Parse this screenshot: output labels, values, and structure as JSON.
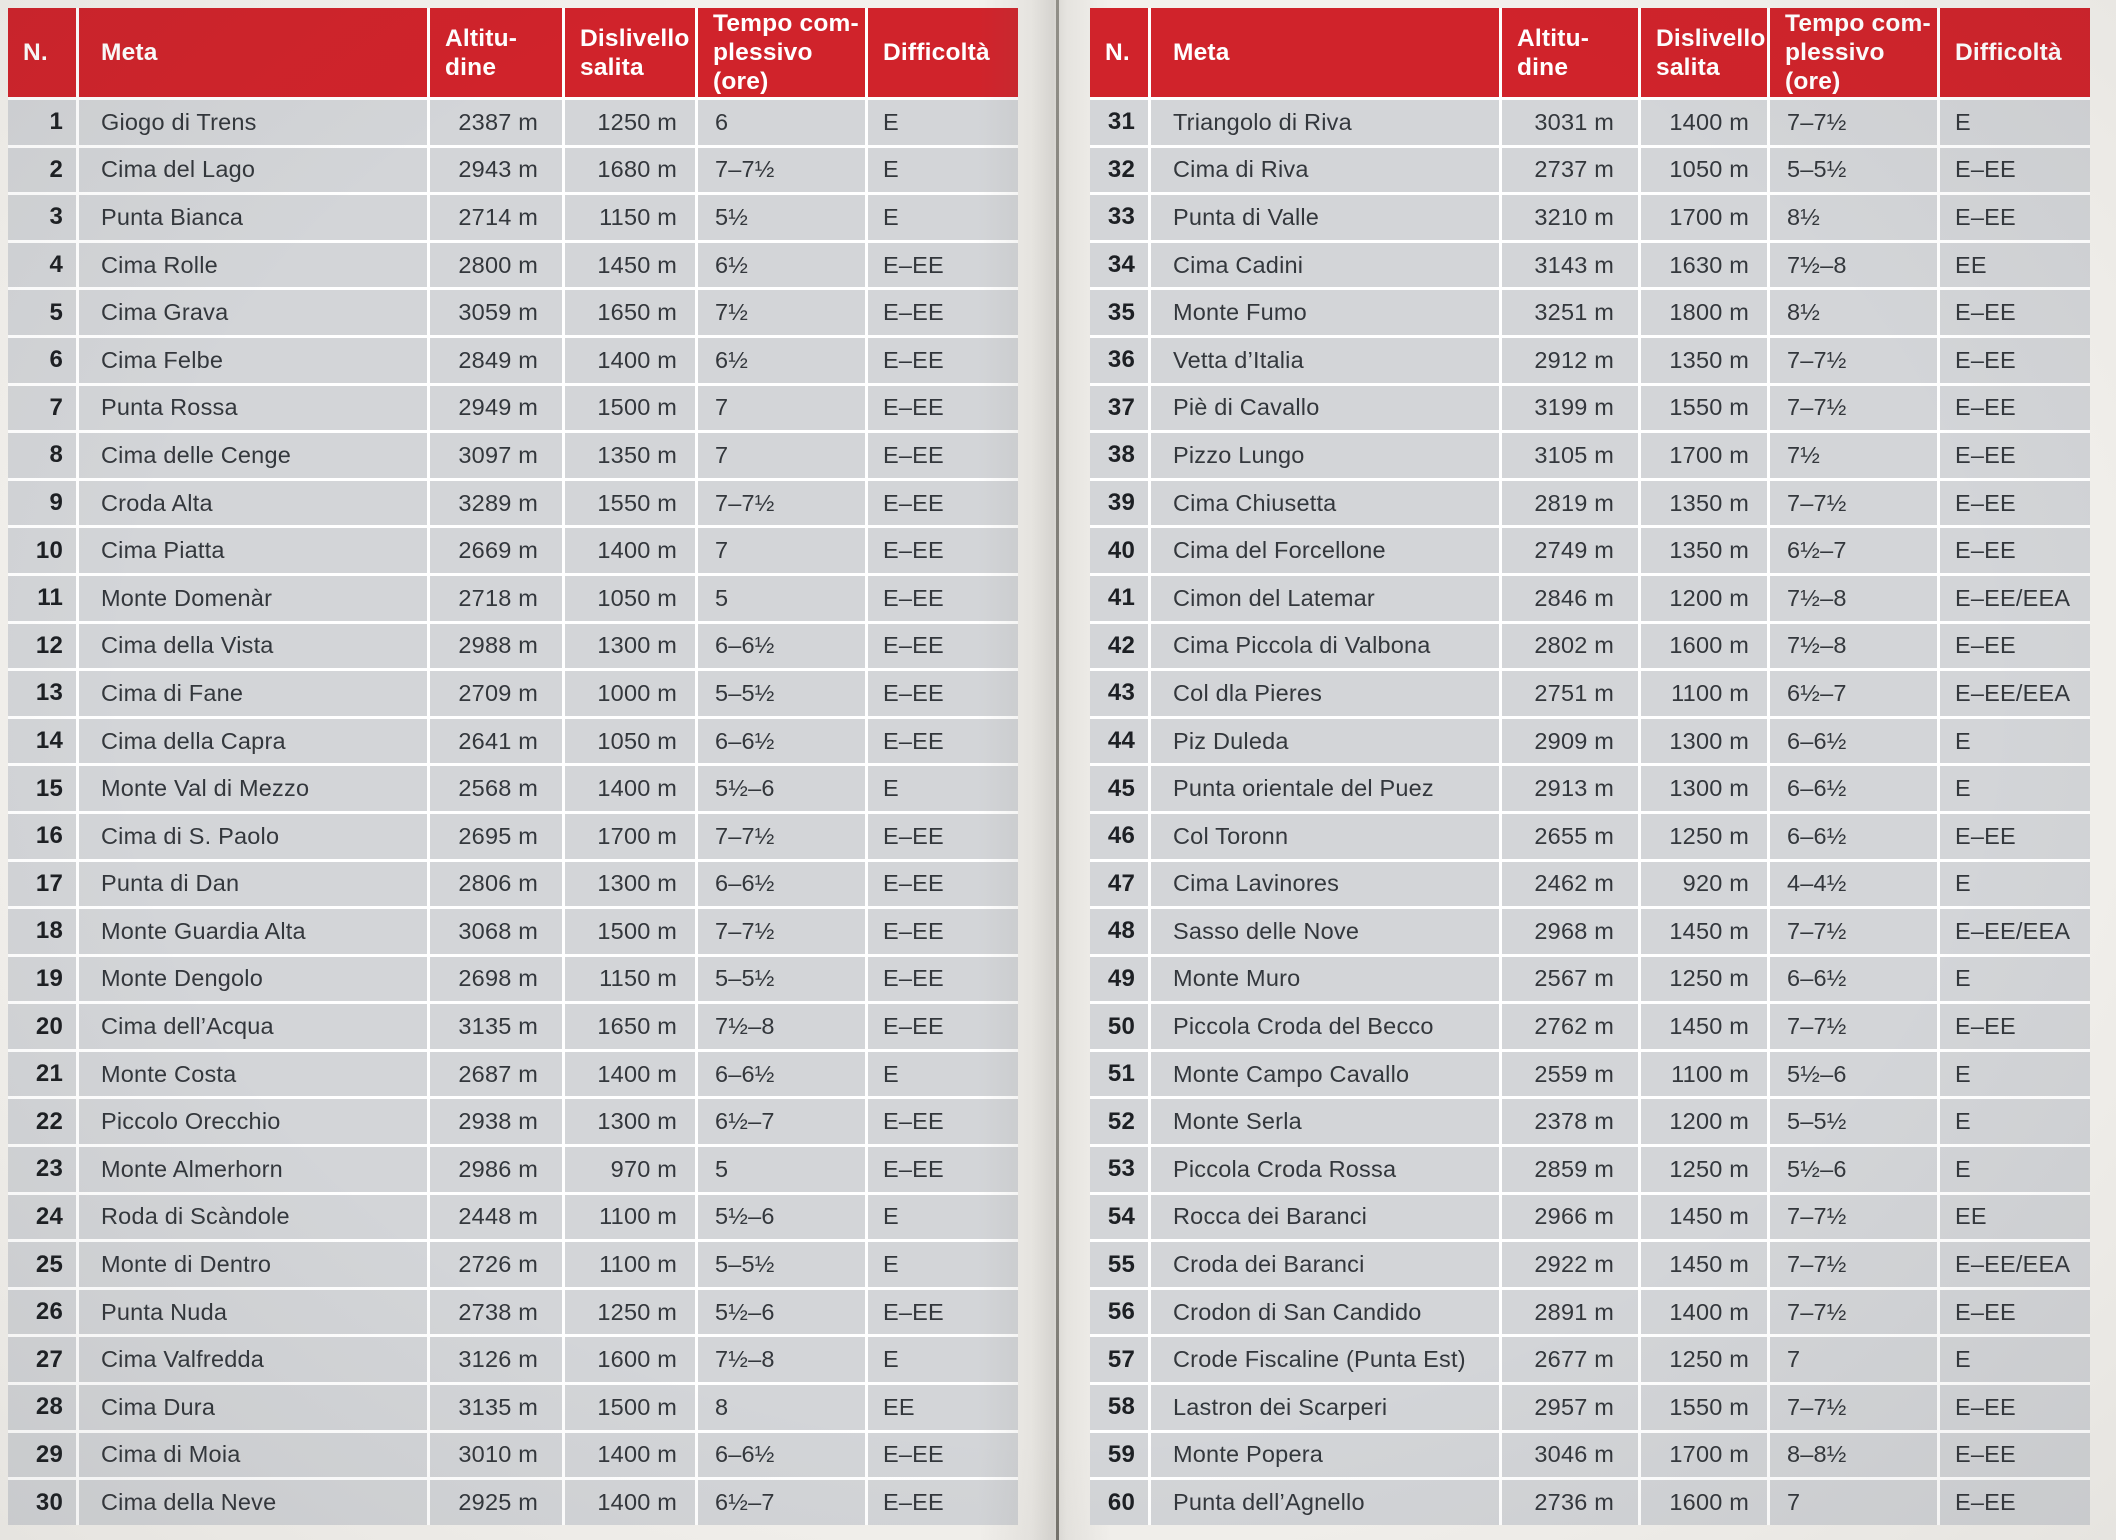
{
  "colors": {
    "header_red": "#d0232b",
    "row_gray": "#d3d5d8",
    "page_bg": "#f3f1ed",
    "text_dark": "#33373c",
    "separator_white": "#ffffff"
  },
  "columns": [
    {
      "key": "n",
      "label": "N."
    },
    {
      "key": "meta",
      "label": "Meta"
    },
    {
      "key": "altitudine",
      "label": "Altitu-\ndine"
    },
    {
      "key": "dislivello",
      "label": "Dislivello\nsalita"
    },
    {
      "key": "tempo",
      "label": "Tempo com-\nplessivo (ore)"
    },
    {
      "key": "difficolta",
      "label": "Difficoltà"
    }
  ],
  "tables": [
    {
      "side": "left",
      "rows": [
        [
          "1",
          "Giogo di Trens",
          "2387 m",
          "1250 m",
          "6",
          "E"
        ],
        [
          "2",
          "Cima del Lago",
          "2943 m",
          "1680 m",
          "7–7½",
          "E"
        ],
        [
          "3",
          "Punta Bianca",
          "2714 m",
          "1150 m",
          "5½",
          "E"
        ],
        [
          "4",
          "Cima Rolle",
          "2800 m",
          "1450 m",
          "6½",
          "E–EE"
        ],
        [
          "5",
          "Cima Grava",
          "3059 m",
          "1650 m",
          "7½",
          "E–EE"
        ],
        [
          "6",
          "Cima Felbe",
          "2849 m",
          "1400 m",
          "6½",
          "E–EE"
        ],
        [
          "7",
          "Punta Rossa",
          "2949 m",
          "1500 m",
          "7",
          "E–EE"
        ],
        [
          "8",
          "Cima delle Cenge",
          "3097 m",
          "1350 m",
          "7",
          "E–EE"
        ],
        [
          "9",
          "Croda Alta",
          "3289 m",
          "1550 m",
          "7–7½",
          "E–EE"
        ],
        [
          "10",
          "Cima Piatta",
          "2669 m",
          "1400 m",
          "7",
          "E–EE"
        ],
        [
          "11",
          "Monte Domenàr",
          "2718 m",
          "1050 m",
          "5",
          "E–EE"
        ],
        [
          "12",
          "Cima della Vista",
          "2988 m",
          "1300 m",
          "6–6½",
          "E–EE"
        ],
        [
          "13",
          "Cima di Fane",
          "2709 m",
          "1000 m",
          "5–5½",
          "E–EE"
        ],
        [
          "14",
          "Cima della Capra",
          "2641 m",
          "1050 m",
          "6–6½",
          "E–EE"
        ],
        [
          "15",
          "Monte Val di Mezzo",
          "2568 m",
          "1400 m",
          "5½–6",
          "E"
        ],
        [
          "16",
          "Cima di S. Paolo",
          "2695 m",
          "1700 m",
          "7–7½",
          "E–EE"
        ],
        [
          "17",
          "Punta di Dan",
          "2806 m",
          "1300 m",
          "6–6½",
          "E–EE"
        ],
        [
          "18",
          "Monte Guardia Alta",
          "3068 m",
          "1500 m",
          "7–7½",
          "E–EE"
        ],
        [
          "19",
          "Monte Dengolo",
          "2698 m",
          "1150 m",
          "5–5½",
          "E–EE"
        ],
        [
          "20",
          "Cima dell’Acqua",
          "3135 m",
          "1650 m",
          "7½–8",
          "E–EE"
        ],
        [
          "21",
          "Monte Costa",
          "2687 m",
          "1400 m",
          "6–6½",
          "E"
        ],
        [
          "22",
          "Piccolo Orecchio",
          "2938 m",
          "1300 m",
          "6½–7",
          "E–EE"
        ],
        [
          "23",
          "Monte Almerhorn",
          "2986 m",
          "970 m",
          "5",
          "E–EE"
        ],
        [
          "24",
          "Roda di Scàndole",
          "2448 m",
          "1100 m",
          "5½–6",
          "E"
        ],
        [
          "25",
          "Monte di Dentro",
          "2726 m",
          "1100 m",
          "5–5½",
          "E"
        ],
        [
          "26",
          "Punta Nuda",
          "2738 m",
          "1250 m",
          "5½–6",
          "E–EE"
        ],
        [
          "27",
          "Cima Valfredda",
          "3126 m",
          "1600 m",
          "7½–8",
          "E"
        ],
        [
          "28",
          "Cima Dura",
          "3135 m",
          "1500 m",
          "8",
          "EE"
        ],
        [
          "29",
          "Cima di Moia",
          "3010 m",
          "1400 m",
          "6–6½",
          "E–EE"
        ],
        [
          "30",
          "Cima della Neve",
          "2925 m",
          "1400 m",
          "6½–7",
          "E–EE"
        ]
      ]
    },
    {
      "side": "right",
      "rows": [
        [
          "31",
          "Triangolo di Riva",
          "3031 m",
          "1400 m",
          "7–7½",
          "E"
        ],
        [
          "32",
          "Cima di Riva",
          "2737 m",
          "1050 m",
          "5–5½",
          "E–EE"
        ],
        [
          "33",
          "Punta di Valle",
          "3210 m",
          "1700 m",
          "8½",
          "E–EE"
        ],
        [
          "34",
          "Cima Cadini",
          "3143 m",
          "1630 m",
          "7½–8",
          "EE"
        ],
        [
          "35",
          "Monte Fumo",
          "3251 m",
          "1800 m",
          "8½",
          "E–EE"
        ],
        [
          "36",
          "Vetta d’Italia",
          "2912 m",
          "1350 m",
          "7–7½",
          "E–EE"
        ],
        [
          "37",
          "Piè di Cavallo",
          "3199 m",
          "1550 m",
          "7–7½",
          "E–EE"
        ],
        [
          "38",
          "Pizzo Lungo",
          "3105 m",
          "1700 m",
          "7½",
          "E–EE"
        ],
        [
          "39",
          "Cima Chiusetta",
          "2819 m",
          "1350 m",
          "7–7½",
          "E–EE"
        ],
        [
          "40",
          "Cima del Forcellone",
          "2749 m",
          "1350 m",
          "6½–7",
          "E–EE"
        ],
        [
          "41",
          "Cimon del Latemar",
          "2846 m",
          "1200 m",
          "7½–8",
          "E–EE/EEA"
        ],
        [
          "42",
          "Cima Piccola di Valbona",
          "2802 m",
          "1600 m",
          "7½–8",
          "E–EE"
        ],
        [
          "43",
          "Col dla Pieres",
          "2751 m",
          "1100 m",
          "6½–7",
          "E–EE/EEA"
        ],
        [
          "44",
          "Piz Duleda",
          "2909 m",
          "1300 m",
          "6–6½",
          "E"
        ],
        [
          "45",
          "Punta orientale del Puez",
          "2913 m",
          "1300 m",
          "6–6½",
          "E"
        ],
        [
          "46",
          "Col Toronn",
          "2655 m",
          "1250 m",
          "6–6½",
          "E–EE"
        ],
        [
          "47",
          "Cima Lavinores",
          "2462 m",
          "920 m",
          "4–4½",
          "E"
        ],
        [
          "48",
          "Sasso delle Nove",
          "2968 m",
          "1450 m",
          "7–7½",
          "E–EE/EEA"
        ],
        [
          "49",
          "Monte Muro",
          "2567 m",
          "1250 m",
          "6–6½",
          "E"
        ],
        [
          "50",
          "Piccola Croda del Becco",
          "2762 m",
          "1450 m",
          "7–7½",
          "E–EE"
        ],
        [
          "51",
          "Monte Campo Cavallo",
          "2559 m",
          "1100 m",
          "5½–6",
          "E"
        ],
        [
          "52",
          "Monte Serla",
          "2378 m",
          "1200 m",
          "5–5½",
          "E"
        ],
        [
          "53",
          "Piccola Croda Rossa",
          "2859 m",
          "1250 m",
          "5½–6",
          "E"
        ],
        [
          "54",
          "Rocca dei Baranci",
          "2966 m",
          "1450 m",
          "7–7½",
          "EE"
        ],
        [
          "55",
          "Croda dei Baranci",
          "2922 m",
          "1450 m",
          "7–7½",
          "E–EE/EEA"
        ],
        [
          "56",
          "Crodon di San Candido",
          "2891 m",
          "1400 m",
          "7–7½",
          "E–EE"
        ],
        [
          "57",
          "Crode Fiscaline (Punta Est)",
          "2677 m",
          "1250 m",
          "7",
          "E"
        ],
        [
          "58",
          "Lastron dei Scarperi",
          "2957 m",
          "1550 m",
          "7–7½",
          "E–EE"
        ],
        [
          "59",
          "Monte Popera",
          "3046 m",
          "1700 m",
          "8–8½",
          "E–EE"
        ],
        [
          "60",
          "Punta dell’Agnello",
          "2736 m",
          "1600 m",
          "7",
          "E–EE"
        ]
      ]
    }
  ]
}
